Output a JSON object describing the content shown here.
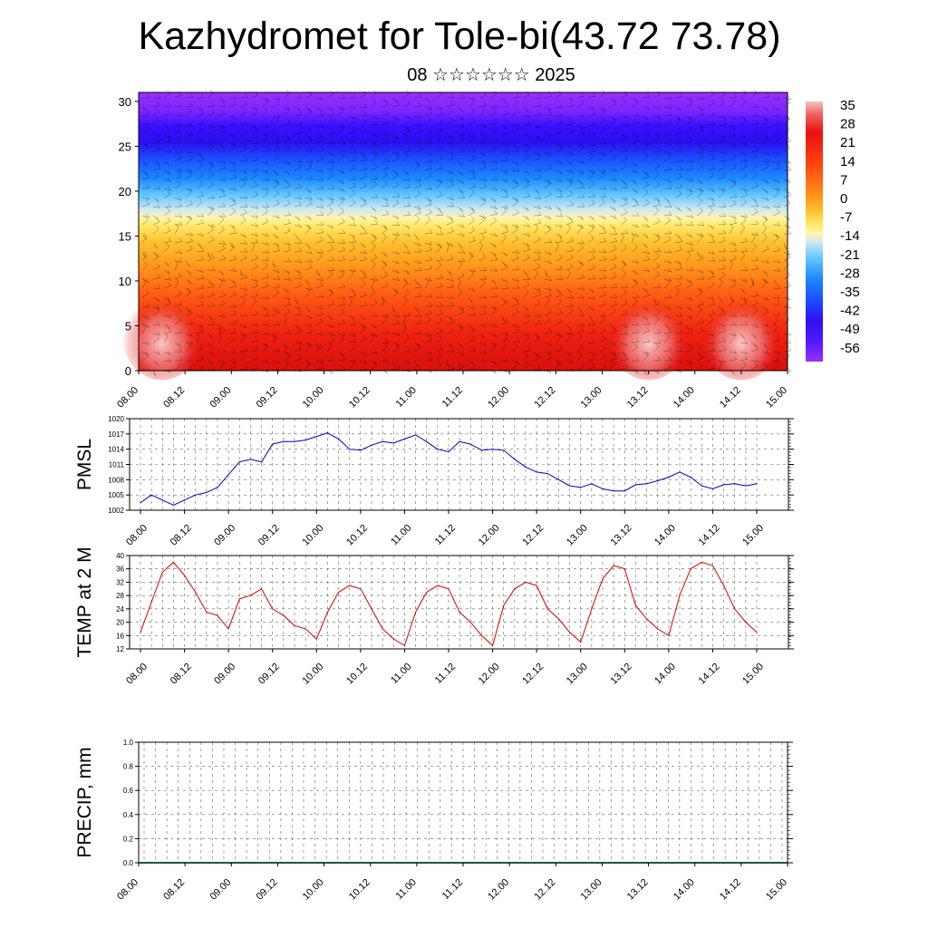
{
  "title": "Kazhydromet for Tole-bi(43.72 73.78)",
  "subtitle": "08 ☆☆☆☆☆☆ 2025",
  "time_labels": [
    "08.00",
    "08.12",
    "09.00",
    "09.12",
    "10.00",
    "10.12",
    "11.00",
    "11.12",
    "12.00",
    "12.12",
    "13.00",
    "13.12",
    "14.00",
    "14.12",
    "15.00"
  ],
  "chart_data": [
    {
      "type": "heatmap",
      "name": "cross-section",
      "y_ticks": [
        0,
        5,
        10,
        15,
        20,
        25,
        30
      ],
      "ylim": [
        0,
        31
      ],
      "colorbar_labels": [
        "35",
        "28",
        "21",
        "14",
        "7",
        "0",
        "-7",
        "-14",
        "-21",
        "-28",
        "-35",
        "-42",
        "-49",
        "-56"
      ],
      "colorbar_range": [
        -60,
        38
      ],
      "warm_cores_x": [
        "08.06",
        "13.12",
        "14.12"
      ],
      "colors": [
        "#9a2cff",
        "#3a10ff",
        "#1a4aff",
        "#1e8aff",
        "#55c8ff",
        "#cfe8f0",
        "#fff5a0",
        "#ffd23a",
        "#ff9a1a",
        "#ff4a10",
        "#e81010",
        "#f4a0a0"
      ]
    },
    {
      "type": "line",
      "ylabel": "PMSL",
      "yticks": [
        1002,
        1005,
        1008,
        1011,
        1014,
        1017,
        1020
      ],
      "ylim": [
        1002,
        1020
      ],
      "color": "#0000cc",
      "values": [
        1003.5,
        1005.0,
        1004.0,
        1003.0,
        1004.0,
        1005.0,
        1005.5,
        1006.5,
        1009.0,
        1011.5,
        1012.0,
        1011.5,
        1015.0,
        1015.5,
        1015.5,
        1015.8,
        1016.5,
        1017.2,
        1016.0,
        1014.0,
        1013.8,
        1014.8,
        1015.5,
        1015.2,
        1016.0,
        1016.8,
        1015.5,
        1014.0,
        1013.5,
        1015.5,
        1015.0,
        1013.8,
        1014.0,
        1013.8,
        1012.0,
        1010.5,
        1009.5,
        1009.2,
        1008.0,
        1006.8,
        1006.5,
        1007.2,
        1006.2,
        1005.8,
        1005.8,
        1007.0,
        1007.2,
        1007.8,
        1008.5,
        1009.5,
        1008.5,
        1006.8,
        1006.2,
        1007.0,
        1007.2,
        1006.8,
        1007.2
      ]
    },
    {
      "type": "line",
      "ylabel": "TEMP at 2 M",
      "yticks": [
        12,
        16,
        20,
        24,
        28,
        32,
        36,
        40
      ],
      "ylim": [
        12,
        40
      ],
      "color": "#dd0000",
      "values": [
        17,
        26,
        35,
        38,
        34,
        29,
        23,
        22,
        18,
        27,
        28,
        30,
        24,
        22,
        19,
        18,
        15,
        23,
        29,
        31,
        30,
        24,
        18,
        15,
        13,
        23,
        29,
        31,
        30,
        23,
        20,
        16,
        13,
        25,
        30,
        32,
        31,
        24,
        21,
        17,
        14,
        24,
        33,
        37,
        36,
        25,
        21,
        18,
        16,
        28,
        36,
        38,
        37,
        31,
        24,
        20,
        17
      ]
    },
    {
      "type": "bar",
      "ylabel": "PRECIP, mm",
      "yticks": [
        "0.0",
        "0.2",
        "0.4",
        "0.6",
        "0.8",
        "1.0"
      ],
      "ylim": [
        0,
        1
      ],
      "values": [
        0,
        0,
        0,
        0,
        0,
        0,
        0,
        0,
        0,
        0,
        0,
        0,
        0,
        0,
        0,
        0,
        0,
        0,
        0,
        0,
        0,
        0,
        0,
        0,
        0,
        0,
        0,
        0,
        0,
        0,
        0,
        0,
        0,
        0,
        0,
        0,
        0,
        0,
        0,
        0,
        0,
        0,
        0,
        0,
        0,
        0,
        0,
        0,
        0,
        0,
        0,
        0,
        0,
        0,
        0,
        0,
        0
      ]
    }
  ]
}
